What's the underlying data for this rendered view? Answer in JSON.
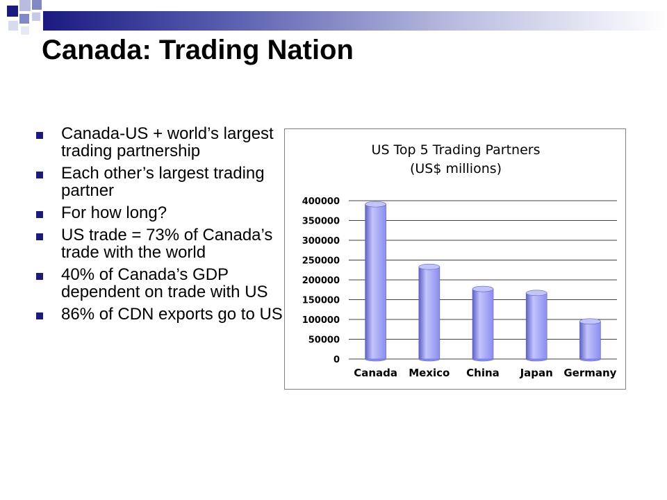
{
  "slide": {
    "title": "Canada: Trading Nation",
    "bullets": [
      "Canada-US + world’s largest trading partnership",
      "Each other’s largest trading partner",
      "For how long?",
      "US trade = 73% of Canada’s trade with the world",
      "40% of Canada’s GDP dependent on trade with US",
      "86% of CDN exports go to US"
    ]
  },
  "colors": {
    "accent": "#1a1a80",
    "bar_fill": "#8a8ef0",
    "bar_dark": "#5c60c8",
    "bar_light": "#c2c4fa"
  },
  "chart_data": {
    "type": "bar",
    "title": "US Top 5 Trading Partners",
    "subtitle": "(US$ millions)",
    "categories": [
      "Canada",
      "Mexico",
      "China",
      "Japan",
      "Germany"
    ],
    "values": [
      391000,
      233000,
      177000,
      167000,
      95000
    ],
    "ylim": [
      0,
      400000
    ],
    "yticks": [
      0,
      50000,
      100000,
      150000,
      200000,
      250000,
      300000,
      350000,
      400000
    ],
    "xlabel": "",
    "ylabel": "",
    "grid": "horizontal",
    "legend": "none"
  }
}
